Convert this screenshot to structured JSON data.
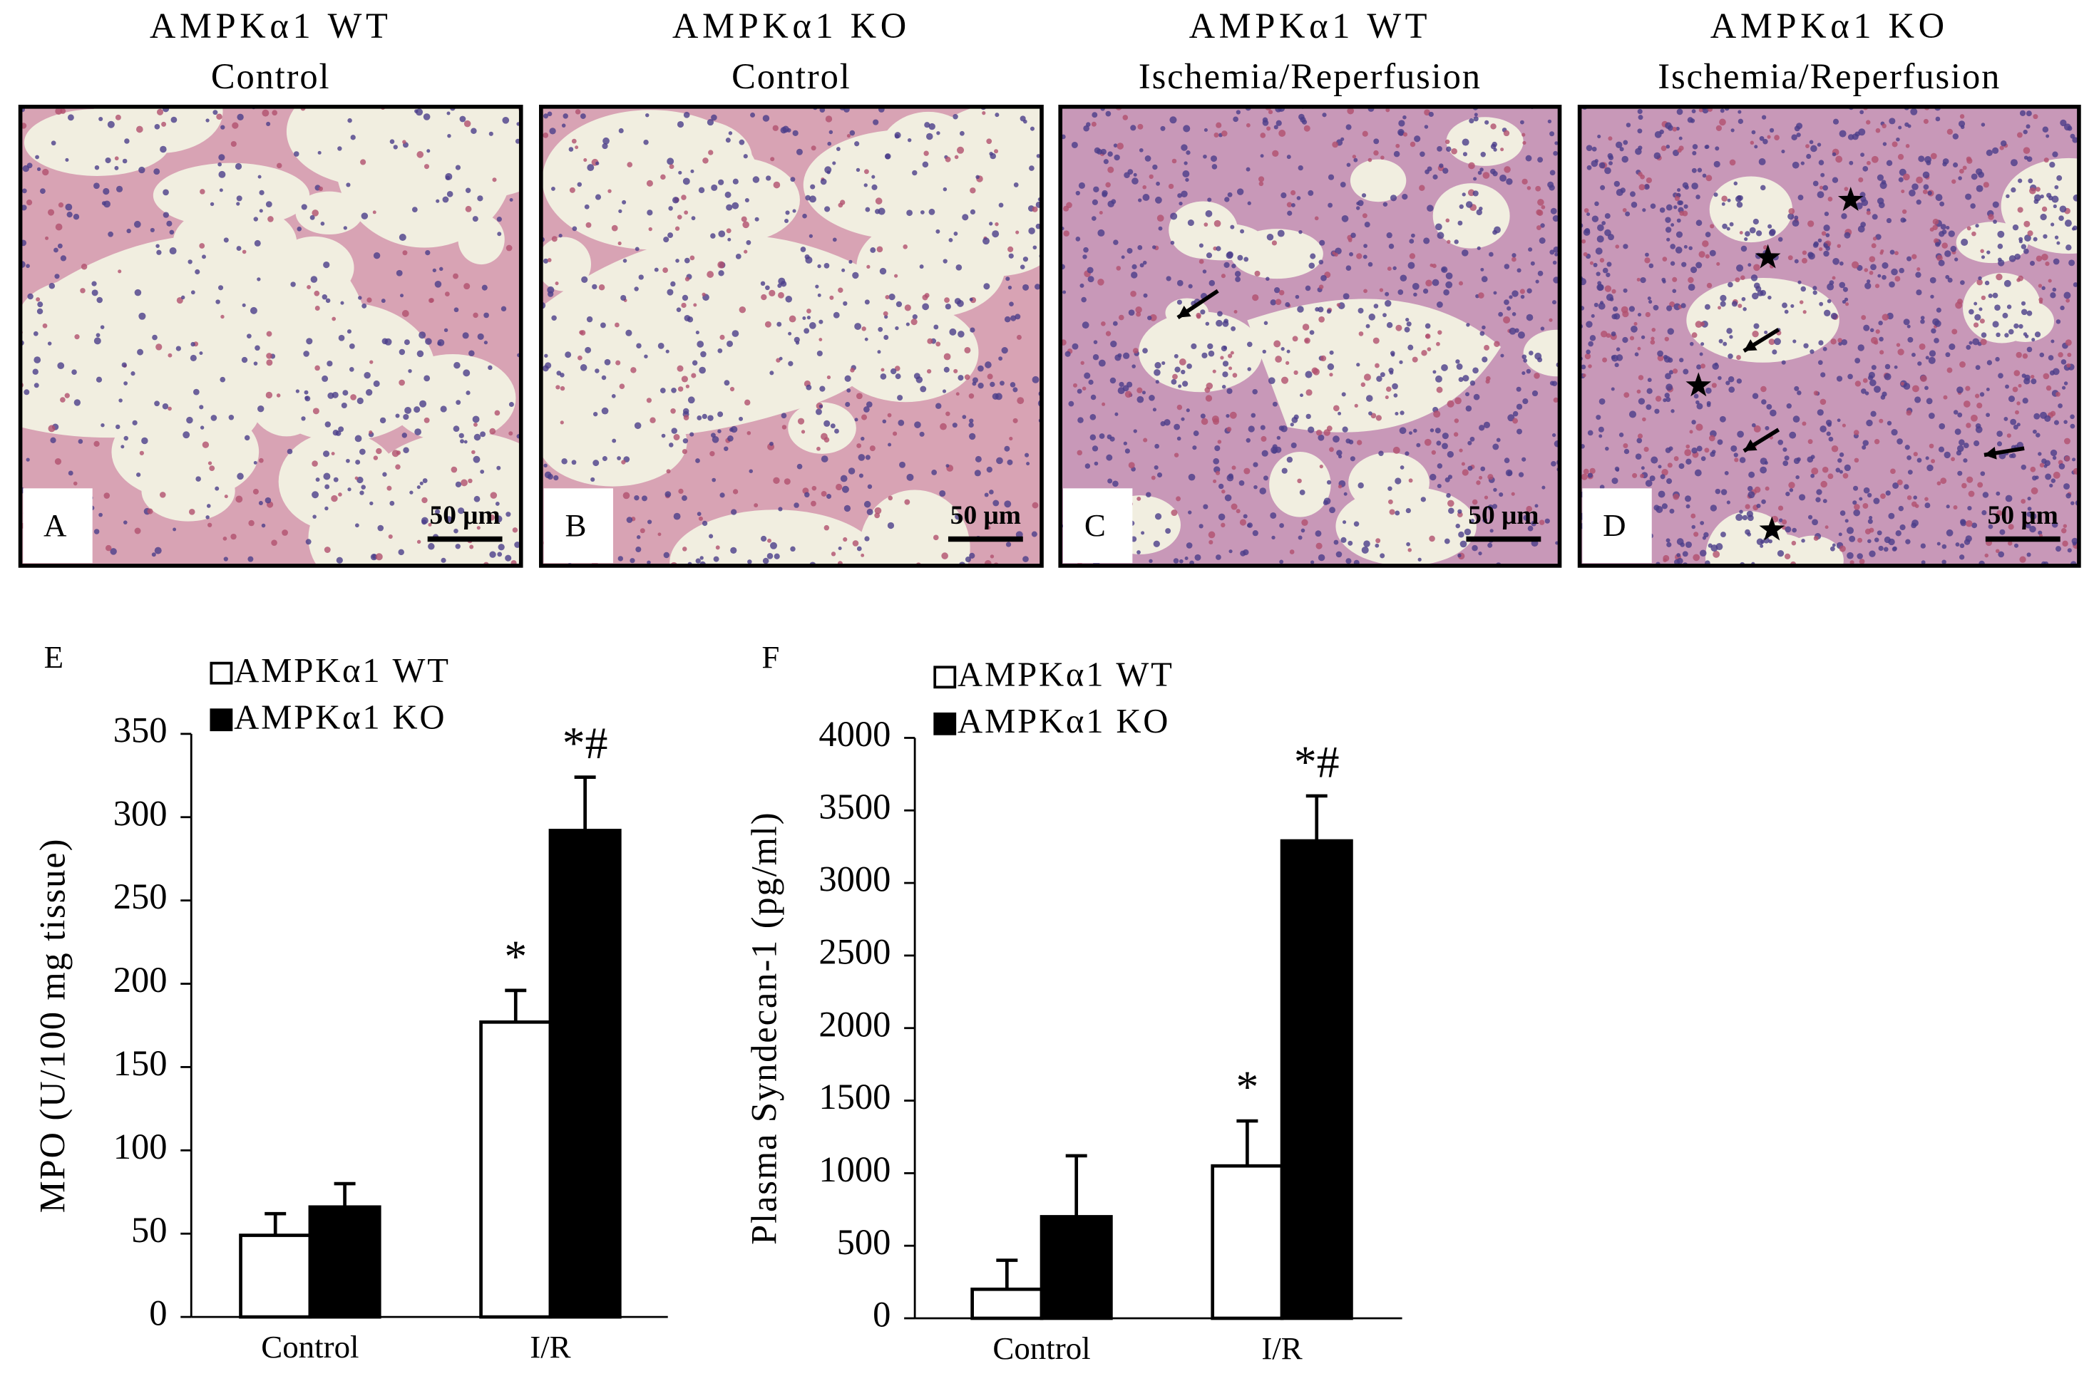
{
  "panels": [
    {
      "title": [
        "AMPKα1 WT",
        "Control"
      ],
      "letter": "A",
      "scale_bar": "50 μm"
    },
    {
      "title": [
        "AMPKα1 KO",
        "Control"
      ],
      "letter": "B",
      "scale_bar": "50 μm"
    },
    {
      "title": [
        "AMPKα1 WT",
        "Ischemia/Reperfusion"
      ],
      "letter": "C",
      "scale_bar": "50 μm"
    },
    {
      "title": [
        "AMPKα1 KO",
        "Ischemia/Reperfusion"
      ],
      "letter": "D",
      "scale_bar": "50 μm"
    }
  ],
  "chart_data": [
    {
      "type": "bar",
      "panel_label": "E",
      "ylabel": "MPO (U/100 mg tissue)",
      "categories": [
        "Control",
        "I/R"
      ],
      "series": [
        {
          "name": "AMPKα1 WT",
          "color": "#ffffff",
          "values": [
            49,
            177
          ],
          "errors": [
            13,
            19
          ],
          "annotations": [
            null,
            "*"
          ]
        },
        {
          "name": "AMPKα1 KO",
          "color": "#000000",
          "values": [
            66,
            292
          ],
          "errors": [
            14,
            32
          ],
          "annotations": [
            null,
            "*#"
          ]
        }
      ],
      "ylim": [
        0,
        350
      ],
      "yticks": [
        0,
        50,
        100,
        150,
        200,
        250,
        300,
        350
      ]
    },
    {
      "type": "bar",
      "panel_label": "F",
      "ylabel": "Plasma Syndecan-1 (pg/ml)",
      "categories": [
        "Control",
        "I/R"
      ],
      "series": [
        {
          "name": "AMPKα1 WT",
          "color": "#ffffff",
          "values": [
            200,
            1050
          ],
          "errors": [
            200,
            310
          ],
          "annotations": [
            null,
            "*"
          ]
        },
        {
          "name": "AMPKα1 KO",
          "color": "#000000",
          "values": [
            700,
            3290
          ],
          "errors": [
            420,
            310
          ],
          "annotations": [
            null,
            "*#"
          ]
        }
      ],
      "ylim": [
        0,
        4000
      ],
      "yticks": [
        0,
        500,
        1000,
        1500,
        2000,
        2500,
        3000,
        3500,
        4000
      ]
    }
  ]
}
